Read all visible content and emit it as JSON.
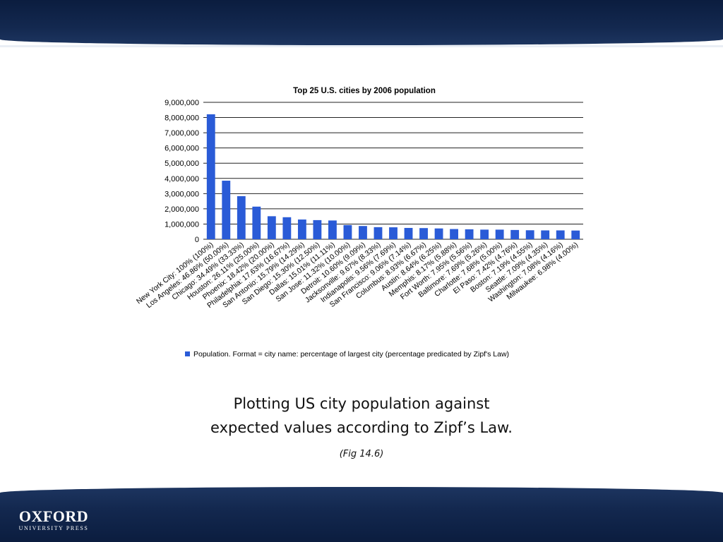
{
  "header": {
    "color": "#13284f"
  },
  "caption": {
    "text": "Plotting US city population against expected values according to Zipf’s Law.",
    "fig_ref": "(Fig 14.6)"
  },
  "footer": {
    "logo_main": "OXFORD",
    "logo_sub": "UNIVERSITY PRESS"
  },
  "chart_data": {
    "type": "bar",
    "title": "Top 25 U.S. cities by 2006 population",
    "bar_color": "#2a5bd7",
    "ylim": [
      0,
      9000000
    ],
    "yticks": [
      0,
      1000000,
      2000000,
      3000000,
      4000000,
      5000000,
      6000000,
      7000000,
      8000000,
      9000000
    ],
    "ytick_labels": [
      "0",
      "1,000,000",
      "2,000,000",
      "3,000,000",
      "4,000,000",
      "5,000,000",
      "6,000,000",
      "7,000,000",
      "8,000,000",
      "9,000,000"
    ],
    "legend": {
      "label": "Population. Format = city name: percentage of largest city (percentage predicated by Zipf's Law)",
      "position": "bottom"
    },
    "categories": [
      "New York City: 100% (100%)",
      "Los Angeles: 46.86% (50.00%)",
      "Chicago: 34.49% (33.33%)",
      "Houston: 26.11% (25.00%)",
      "Phoenix: 18.42% (20.00%)",
      "Philadelphia: 17.63% (16.67%)",
      "San Antonio: 15.79% (14.29%)",
      "San Diego: 15.30% (12.50%)",
      "Dallas: 15.01% (11.11%)",
      "San Jose: 11.32% (10.00%)",
      "Detroit: 10.60% (9.09%)",
      "Jacksonville: 9.67% (8.33%)",
      "Indianapolis: 9.56% (7.69%)",
      "San Francisco: 9.06% (7.14%)",
      "Columbus: 8.93% (6.67%)",
      "Austin: 8.64% (6.25%)",
      "Memphis: 8.17% (5.88%)",
      "Fort Worth: 7.95% (5.56%)",
      "Baltimore: 7.69% (5.26%)",
      "Charlotte: 7.68% (5.00%)",
      "El Paso: 7.42% (4.76%)",
      "Boston: 7.19% (4.55%)",
      "Seattle: 7.09% (4.35%)",
      "Washington: 7.08% (4.16%)",
      "Milwaukee: 6.98% (4.00%)"
    ],
    "values": [
      8214000,
      3849000,
      2833000,
      2144000,
      1513000,
      1448000,
      1297000,
      1257000,
      1233000,
      930000,
      871000,
      794000,
      785000,
      744000,
      733000,
      710000,
      671000,
      653000,
      632000,
      631000,
      609000,
      591000,
      582000,
      582000,
      573000
    ]
  }
}
